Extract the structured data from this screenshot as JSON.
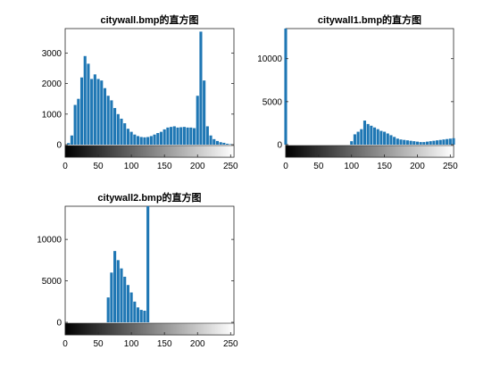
{
  "chart_data": [
    {
      "type": "bar",
      "title": "citywall.bmp的直方图",
      "xlabel": "",
      "ylabel": "",
      "xlim": [
        0,
        255
      ],
      "ylim": [
        0,
        3800
      ],
      "xticks": [
        0,
        50,
        100,
        150,
        200,
        250
      ],
      "yticks": [
        0,
        1000,
        2000,
        3000
      ],
      "xtick_labels": [
        "0",
        "50",
        "100",
        "150",
        "200",
        "250"
      ],
      "ytick_labels": [
        "0",
        "1000",
        "2000",
        "3000"
      ],
      "bar_color": "#1f77b4",
      "colorbar": "grayscale 0-255",
      "series": [
        {
          "x": [
            0,
            5,
            10,
            15,
            20,
            25,
            30,
            35,
            40,
            45,
            50,
            55,
            60,
            65,
            70,
            75,
            80,
            85,
            90,
            95,
            100,
            105,
            110,
            115,
            120,
            125,
            130,
            135,
            140,
            145,
            150,
            155,
            160,
            165,
            170,
            175,
            180,
            185,
            190,
            195,
            200,
            205,
            210,
            215,
            220,
            225,
            230,
            235,
            240,
            245,
            250,
            255
          ],
          "values": [
            0,
            50,
            300,
            1300,
            1500,
            2200,
            2900,
            2650,
            2150,
            2300,
            2150,
            2100,
            1850,
            1600,
            1450,
            1200,
            1000,
            850,
            700,
            520,
            420,
            330,
            280,
            250,
            240,
            250,
            280,
            330,
            380,
            420,
            500,
            560,
            580,
            600,
            560,
            570,
            580,
            560,
            560,
            540,
            1600,
            3700,
            2100,
            600,
            300,
            180,
            120,
            80,
            60,
            30,
            15,
            0
          ]
        }
      ]
    },
    {
      "type": "bar",
      "title": "citywall1.bmp的直方图",
      "xlabel": "",
      "ylabel": "",
      "xlim": [
        0,
        255
      ],
      "ylim": [
        0,
        13500
      ],
      "xticks": [
        0,
        50,
        100,
        150,
        200,
        250
      ],
      "yticks": [
        0,
        5000,
        10000
      ],
      "xtick_labels": [
        "0",
        "50",
        "100",
        "150",
        "200",
        "250"
      ],
      "ytick_labels": [
        "0",
        "5000",
        "10000"
      ],
      "bar_color": "#1f77b4",
      "colorbar": "grayscale 0-255",
      "series": [
        {
          "x": [
            0,
            5,
            10,
            15,
            20,
            25,
            30,
            35,
            40,
            45,
            50,
            55,
            60,
            65,
            70,
            75,
            80,
            85,
            90,
            95,
            100,
            105,
            110,
            115,
            120,
            125,
            130,
            135,
            140,
            145,
            150,
            155,
            160,
            165,
            170,
            175,
            180,
            185,
            190,
            195,
            200,
            205,
            210,
            215,
            220,
            225,
            230,
            235,
            240,
            245,
            250,
            255
          ],
          "values": [
            13500,
            0,
            0,
            0,
            0,
            0,
            0,
            0,
            0,
            0,
            0,
            0,
            0,
            0,
            0,
            0,
            0,
            0,
            0,
            0,
            400,
            1200,
            1500,
            1800,
            2800,
            2400,
            2200,
            2000,
            1800,
            1600,
            1500,
            1300,
            1100,
            900,
            700,
            600,
            550,
            500,
            450,
            400,
            350,
            300,
            300,
            350,
            400,
            450,
            500,
            550,
            600,
            650,
            700,
            750
          ]
        }
      ]
    },
    {
      "type": "bar",
      "title": "citywall2.bmp的直方图",
      "xlabel": "",
      "ylabel": "",
      "xlim": [
        0,
        255
      ],
      "ylim": [
        0,
        14000
      ],
      "xticks": [
        0,
        50,
        100,
        150,
        200,
        250
      ],
      "yticks": [
        0,
        5000,
        10000
      ],
      "xtick_labels": [
        "0",
        "50",
        "100",
        "150",
        "200",
        "250"
      ],
      "ytick_labels": [
        "0",
        "5000",
        "10000"
      ],
      "bar_color": "#1f77b4",
      "colorbar": "grayscale 0-255",
      "series": [
        {
          "x": [
            0,
            5,
            10,
            15,
            20,
            25,
            30,
            35,
            40,
            45,
            50,
            55,
            60,
            65,
            70,
            75,
            80,
            85,
            90,
            95,
            100,
            105,
            110,
            115,
            120,
            125,
            130,
            135,
            140,
            145,
            150,
            155,
            160,
            165,
            170,
            175,
            180,
            185,
            190,
            195,
            200,
            205,
            210,
            215,
            220,
            225,
            230,
            235,
            240,
            245,
            250,
            255
          ],
          "values": [
            0,
            0,
            0,
            0,
            0,
            0,
            0,
            0,
            0,
            0,
            0,
            0,
            0,
            3000,
            6000,
            8600,
            7500,
            6500,
            5500,
            4500,
            3600,
            2500,
            1800,
            1500,
            1400,
            14000,
            0,
            0,
            0,
            0,
            0,
            0,
            0,
            0,
            0,
            0,
            0,
            0,
            0,
            0,
            0,
            0,
            0,
            0,
            0,
            0,
            0,
            0,
            0,
            0,
            0,
            0
          ]
        }
      ]
    }
  ]
}
